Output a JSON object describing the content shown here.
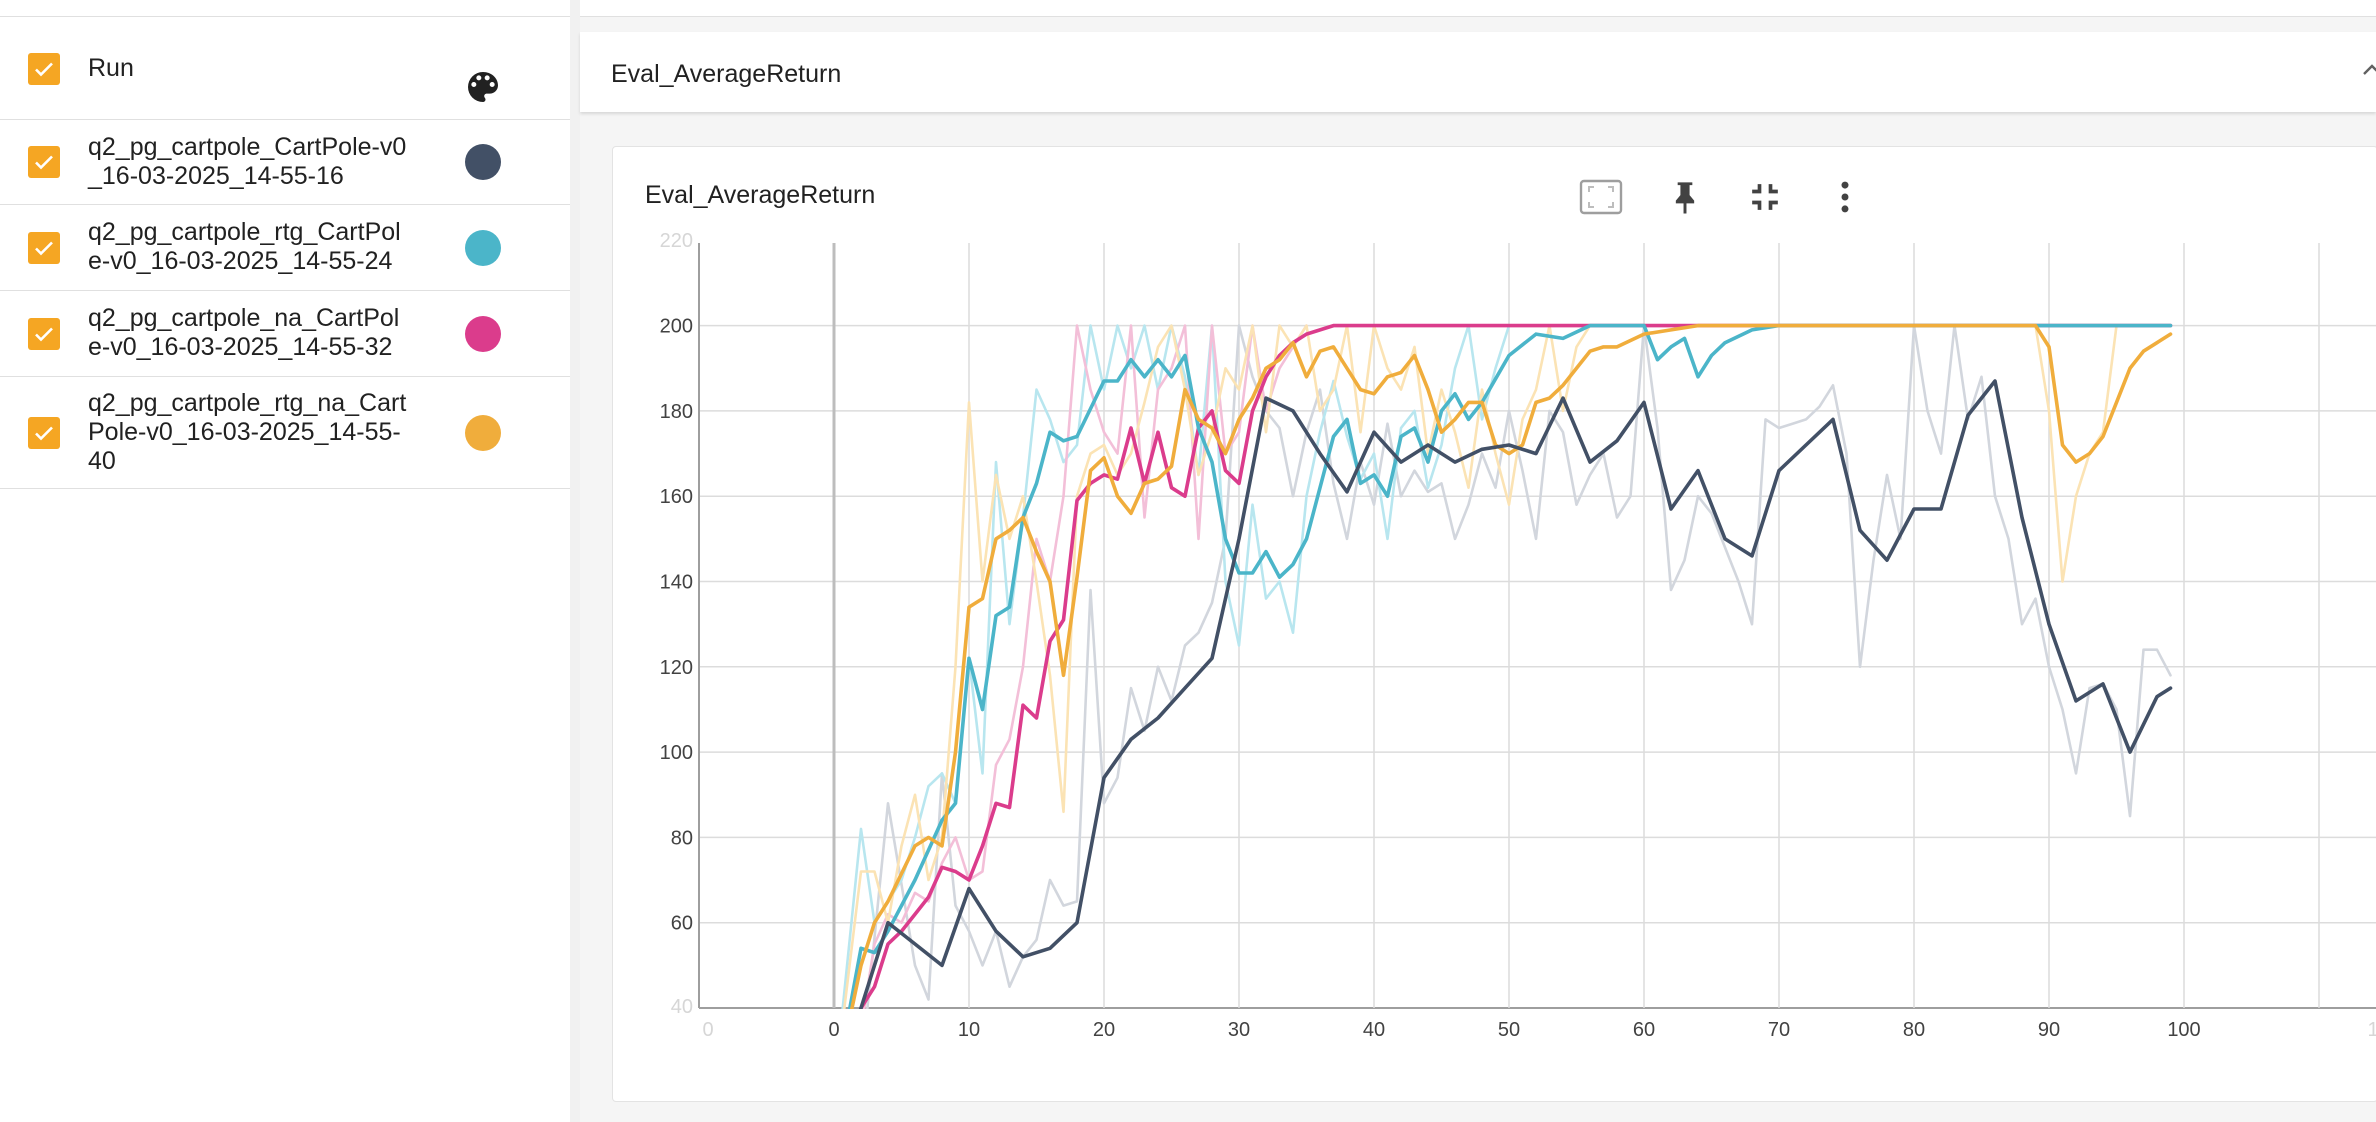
{
  "sidebar": {
    "header_label": "Run",
    "palette_icon": "palette-icon",
    "runs": [
      {
        "label": "q2_pg_cartpole_CartPole-v0_16-03-2025_14-55-16",
        "color": "#425066"
      },
      {
        "label": "q2_pg_cartpole_rtg_CartPole-v0_16-03-2025_14-55-24",
        "color": "#4bb5c9"
      },
      {
        "label": "q2_pg_cartpole_na_CartPole-v0_16-03-2025_14-55-32",
        "color": "#db3c8c"
      },
      {
        "label": "q2_pg_cartpole_rtg_na_CartPole-v0_16-03-2025_14-55-40",
        "color": "#f0ad3c"
      }
    ],
    "checkbox_color": "#f5a623"
  },
  "main": {
    "group_title": "Eval_AverageReturn",
    "card": {
      "title": "Eval_AverageReturn",
      "toolbar": [
        "fit-to-screen-icon",
        "pin-icon",
        "collapse-icon",
        "more-vert-icon"
      ]
    }
  },
  "chart_data": {
    "type": "line",
    "x_ticks": [
      0,
      10,
      20,
      30,
      40,
      50,
      60,
      70,
      80,
      90,
      100
    ],
    "y_ticks": [
      60,
      80,
      100,
      120,
      140,
      160,
      180,
      200
    ],
    "xlim": [
      -10,
      110
    ],
    "ylim": [
      40,
      220
    ],
    "grid": true,
    "series": [
      {
        "run": "q2_pg_cartpole_CartPole-v0_16-03-2025_14-55-16",
        "color": "#425066",
        "x": [
          0,
          2,
          4,
          6,
          8,
          10,
          12,
          14,
          16,
          18,
          20,
          22,
          24,
          26,
          28,
          30,
          32,
          34,
          36,
          38,
          40,
          42,
          44,
          46,
          48,
          50,
          52,
          54,
          56,
          58,
          60,
          62,
          64,
          66,
          68,
          70,
          72,
          74,
          76,
          78,
          80,
          82,
          84,
          86,
          88,
          90,
          92,
          94,
          96,
          98,
          99
        ],
        "y": [
          20,
          40,
          60,
          55,
          50,
          68,
          58,
          52,
          54,
          60,
          94,
          103,
          108,
          115,
          122,
          150,
          183,
          180,
          170,
          161,
          175,
          168,
          172,
          168,
          171,
          172,
          170,
          183,
          168,
          173,
          182,
          157,
          166,
          150,
          146,
          166,
          172,
          178,
          152,
          145,
          157,
          157,
          179,
          187,
          155,
          130,
          112,
          116,
          100,
          113,
          115
        ]
      },
      {
        "run": "q2_pg_cartpole_rtg_CartPole-v0_16-03-2025_14-55-24",
        "color": "#4bb5c9",
        "x": [
          0,
          2,
          3,
          4,
          6,
          8,
          9,
          10,
          11,
          12,
          13,
          14,
          15,
          16,
          17,
          18,
          20,
          21,
          22,
          23,
          24,
          25,
          26,
          27,
          28,
          29,
          30,
          31,
          32,
          33,
          34,
          35,
          36,
          37,
          38,
          39,
          40,
          41,
          42,
          43,
          44,
          45,
          46,
          47,
          48,
          50,
          52,
          54,
          56,
          58,
          60,
          61,
          62,
          63,
          64,
          65,
          66,
          68,
          70,
          75,
          80,
          90,
          99
        ],
        "y": [
          20,
          54,
          53,
          58,
          70,
          84,
          88,
          122,
          110,
          132,
          134,
          155,
          163,
          175,
          173,
          174,
          187,
          187,
          192,
          188,
          192,
          188,
          193,
          176,
          168,
          150,
          142,
          142,
          147,
          141,
          144,
          150,
          162,
          174,
          178,
          163,
          165,
          160,
          174,
          176,
          168,
          180,
          184,
          178,
          182,
          193,
          198,
          197,
          200,
          200,
          200,
          192,
          195,
          197,
          188,
          193,
          196,
          199,
          200,
          200,
          200,
          200,
          200
        ]
      },
      {
        "run": "q2_pg_cartpole_na_CartPole-v0_16-03-2025_14-55-32",
        "color": "#db3c8c",
        "x": [
          0,
          2,
          3,
          4,
          5,
          6,
          7,
          8,
          9,
          10,
          11,
          12,
          13,
          14,
          15,
          16,
          17,
          18,
          19,
          20,
          21,
          22,
          23,
          24,
          25,
          26,
          27,
          28,
          29,
          30,
          31,
          32,
          33,
          34,
          35,
          36,
          37,
          38,
          40,
          45,
          50,
          60,
          70,
          80,
          90,
          99
        ],
        "y": [
          20,
          40,
          45,
          55,
          58,
          62,
          66,
          73,
          72,
          70,
          78,
          88,
          87,
          111,
          108,
          126,
          131,
          159,
          163,
          165,
          164,
          176,
          163,
          175,
          162,
          160,
          176,
          180,
          166,
          163,
          180,
          188,
          193,
          196,
          198,
          199,
          200,
          200,
          200,
          200,
          200,
          200,
          200,
          200,
          200,
          200
        ]
      },
      {
        "run": "q2_pg_cartpole_rtg_na_CartPole-v0_16-03-2025_14-55-40",
        "color": "#f0ad3c",
        "x": [
          0,
          2,
          3,
          4,
          6,
          7,
          8,
          9,
          10,
          11,
          12,
          13,
          14,
          15,
          16,
          17,
          18,
          19,
          20,
          21,
          22,
          23,
          24,
          25,
          26,
          27,
          28,
          29,
          30,
          31,
          32,
          33,
          34,
          35,
          36,
          37,
          38,
          39,
          40,
          41,
          42,
          43,
          44,
          45,
          46,
          47,
          48,
          49,
          50,
          51,
          52,
          53,
          54,
          55,
          56,
          57,
          58,
          60,
          62,
          64,
          66,
          68,
          70,
          75,
          80,
          85,
          88,
          89,
          90,
          91,
          92,
          93,
          94,
          95,
          96,
          97,
          98,
          99
        ],
        "y": [
          20,
          50,
          60,
          65,
          78,
          80,
          78,
          100,
          134,
          136,
          150,
          152,
          155,
          147,
          140,
          118,
          141,
          166,
          169,
          160,
          156,
          163,
          164,
          167,
          185,
          178,
          176,
          170,
          178,
          183,
          190,
          192,
          196,
          188,
          194,
          195,
          190,
          185,
          184,
          188,
          189,
          193,
          185,
          175,
          178,
          182,
          182,
          172,
          170,
          172,
          182,
          183,
          186,
          190,
          194,
          195,
          195,
          198,
          199,
          200,
          200,
          200,
          200,
          200,
          200,
          200,
          200,
          200,
          195,
          172,
          168,
          170,
          174,
          182,
          190,
          194,
          196,
          198
        ]
      }
    ],
    "raw_series": [
      {
        "run": "q2_pg_cartpole_CartPole-v0_16-03-2025_14-55-16",
        "color": "#d2d6dd",
        "x": [
          0,
          2,
          4,
          6,
          7,
          8,
          9,
          10,
          11,
          12,
          13,
          14,
          15,
          16,
          17,
          18,
          19,
          20,
          21,
          22,
          23,
          24,
          25,
          26,
          27,
          28,
          29,
          30,
          31,
          32,
          33,
          34,
          35,
          36,
          37,
          38,
          39,
          40,
          41,
          42,
          43,
          44,
          45,
          46,
          47,
          48,
          49,
          50,
          51,
          52,
          53,
          54,
          55,
          56,
          57,
          58,
          59,
          60,
          61,
          62,
          63,
          64,
          65,
          66,
          67,
          68,
          69,
          70,
          71,
          72,
          73,
          74,
          75,
          76,
          77,
          78,
          79,
          80,
          81,
          82,
          83,
          84,
          85,
          86,
          87,
          88,
          89,
          90,
          91,
          92,
          93,
          94,
          95,
          96,
          97,
          98,
          99
        ],
        "y": [
          20,
          25,
          88,
          50,
          42,
          95,
          64,
          58,
          50,
          58,
          45,
          52,
          56,
          70,
          64,
          65,
          138,
          88,
          94,
          115,
          105,
          120,
          112,
          125,
          128,
          135,
          150,
          200,
          188,
          180,
          176,
          160,
          175,
          185,
          163,
          150,
          168,
          158,
          177,
          160,
          166,
          161,
          163,
          150,
          158,
          170,
          162,
          180,
          166,
          150,
          180,
          175,
          158,
          165,
          170,
          155,
          160,
          200,
          176,
          138,
          145,
          160,
          156,
          148,
          140,
          130,
          178,
          176,
          177,
          178,
          181,
          186,
          170,
          120,
          145,
          165,
          150,
          200,
          180,
          170,
          200,
          178,
          188,
          160,
          150,
          130,
          136,
          120,
          110,
          95,
          115,
          116,
          110,
          85,
          124,
          124,
          118
        ]
      },
      {
        "run": "q2_pg_cartpole_rtg_CartPole-v0_16-03-2025_14-55-24",
        "color": "#b8e6ef",
        "x": [
          0,
          2,
          3,
          4,
          5,
          6,
          7,
          8,
          9,
          10,
          11,
          12,
          13,
          14,
          15,
          16,
          17,
          18,
          19,
          20,
          21,
          22,
          23,
          24,
          25,
          26,
          27,
          28,
          29,
          30,
          31,
          32,
          33,
          34,
          35,
          36,
          37,
          38,
          39,
          40,
          41,
          42,
          43,
          44,
          45,
          46,
          47,
          48,
          49,
          50
        ],
        "y": [
          20,
          82,
          60,
          65,
          70,
          80,
          92,
          95,
          88,
          122,
          95,
          168,
          130,
          155,
          185,
          178,
          168,
          172,
          200,
          185,
          200,
          190,
          200,
          185,
          200,
          188,
          165,
          200,
          140,
          125,
          158,
          136,
          140,
          128,
          160,
          175,
          187,
          174,
          164,
          170,
          150,
          176,
          180,
          162,
          172,
          190,
          200,
          178,
          190,
          200
        ]
      },
      {
        "run": "q2_pg_cartpole_na_CartPole-v0_16-03-2025_14-55-32",
        "color": "#f3bfd8",
        "x": [
          0,
          2,
          3,
          4,
          5,
          6,
          7,
          8,
          9,
          10,
          11,
          12,
          13,
          14,
          15,
          16,
          17,
          18,
          19,
          20,
          21,
          22,
          23,
          24,
          25,
          26,
          27,
          28,
          29,
          30,
          31,
          32,
          33,
          34,
          35
        ],
        "y": [
          20,
          35,
          55,
          62,
          60,
          67,
          65,
          74,
          80,
          70,
          72,
          97,
          103,
          120,
          150,
          140,
          160,
          200,
          185,
          175,
          170,
          200,
          155,
          185,
          190,
          200,
          150,
          200,
          170,
          175,
          200,
          180,
          190,
          195,
          200
        ]
      },
      {
        "run": "q2_pg_cartpole_rtg_na_CartPole-v0_16-03-2025_14-55-40",
        "color": "#fbe3b4",
        "x": [
          0,
          2,
          3,
          4,
          5,
          6,
          7,
          8,
          9,
          10,
          11,
          12,
          13,
          14,
          15,
          16,
          17,
          18,
          19,
          20,
          21,
          22,
          23,
          24,
          25,
          26,
          27,
          28,
          29,
          30,
          31,
          32,
          33,
          34,
          35,
          36,
          37,
          38,
          39,
          40,
          41,
          42,
          43,
          44,
          45,
          46,
          47,
          48,
          49,
          50,
          51,
          52,
          53,
          54,
          55,
          56,
          89,
          90,
          91,
          92,
          93,
          94,
          95
        ],
        "y": [
          20,
          72,
          72,
          60,
          78,
          90,
          70,
          80,
          120,
          182,
          140,
          165,
          150,
          160,
          140,
          118,
          86,
          160,
          170,
          172,
          165,
          170,
          182,
          195,
          200,
          185,
          165,
          175,
          190,
          185,
          200,
          175,
          200,
          195,
          200,
          180,
          185,
          200,
          175,
          200,
          190,
          185,
          195,
          170,
          185,
          175,
          162,
          185,
          170,
          158,
          178,
          185,
          200,
          180,
          195,
          200,
          200,
          180,
          140,
          160,
          170,
          175,
          200
        ]
      }
    ]
  }
}
